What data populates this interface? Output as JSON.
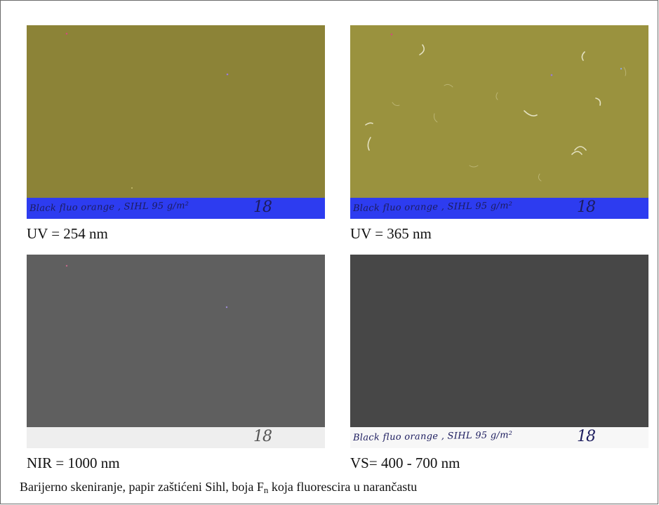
{
  "panels": [
    {
      "caption": "UV = 254 nm",
      "strip_text": "Black fluo orange , SIHL 95 g/m²",
      "strip_number": "18",
      "colors": {
        "field": "#8f8537",
        "strip": "#2d3cf0"
      }
    },
    {
      "caption": "UV = 365 nm",
      "strip_text": "Black fluo orange , SIHL 95 g/m²",
      "strip_number": "18",
      "colors": {
        "field": "#9a923e",
        "strip": "#2d3cf0"
      }
    },
    {
      "caption": "NIR = 1000 nm",
      "strip_text": "",
      "strip_number": "18",
      "colors": {
        "field": "#5f5f5f",
        "strip": "#eeeeee"
      }
    },
    {
      "caption": "VS= 400 - 700 nm",
      "strip_text": "Black fluo orange , SIHL 95 g/m²",
      "strip_number": "18",
      "colors": {
        "field": "#474747",
        "strip": "#f7f7f7"
      }
    }
  ],
  "footer": {
    "before": "Barijerno skeniranje, papir zaštićeni Sihl, boja F",
    "subscript": "n",
    "after": " koja fluorescira u narančastu"
  }
}
